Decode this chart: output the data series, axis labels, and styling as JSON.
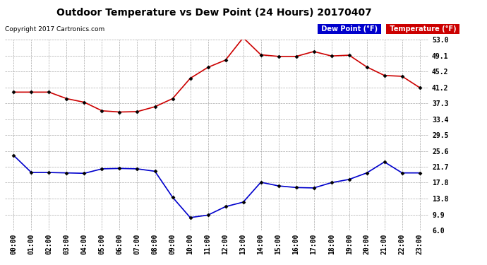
{
  "title": "Outdoor Temperature vs Dew Point (24 Hours) 20170407",
  "copyright": "Copyright 2017 Cartronics.com",
  "hours": [
    "00:00",
    "01:00",
    "02:00",
    "03:00",
    "04:00",
    "05:00",
    "06:00",
    "07:00",
    "08:00",
    "09:00",
    "10:00",
    "11:00",
    "12:00",
    "13:00",
    "14:00",
    "15:00",
    "16:00",
    "17:00",
    "18:00",
    "19:00",
    "20:00",
    "21:00",
    "22:00",
    "23:00"
  ],
  "temperature": [
    40.1,
    40.1,
    40.1,
    38.5,
    37.6,
    35.5,
    35.2,
    35.3,
    36.5,
    38.5,
    43.5,
    46.2,
    48.0,
    53.5,
    49.3,
    48.9,
    48.9,
    50.1,
    49.0,
    49.2,
    46.3,
    44.2,
    44.0,
    41.2
  ],
  "dew_point": [
    24.5,
    20.3,
    20.3,
    20.2,
    20.1,
    21.2,
    21.3,
    21.2,
    20.6,
    14.2,
    9.2,
    9.8,
    11.9,
    13.0,
    17.9,
    17.0,
    16.6,
    16.5,
    17.8,
    18.6,
    20.2,
    22.9,
    20.2,
    20.2
  ],
  "temp_color": "#cc0000",
  "dew_color": "#0000cc",
  "ylim": [
    6.0,
    53.0
  ],
  "yticks": [
    6.0,
    9.9,
    13.8,
    17.8,
    21.7,
    25.6,
    29.5,
    33.4,
    37.3,
    41.2,
    45.2,
    49.1,
    53.0
  ],
  "bg_color": "#ffffff",
  "grid_color": "#aaaaaa",
  "marker": "D",
  "marker_size": 2.5,
  "title_fontsize": 10,
  "tick_fontsize": 7,
  "copyright_fontsize": 6.5,
  "legend_fontsize": 7
}
